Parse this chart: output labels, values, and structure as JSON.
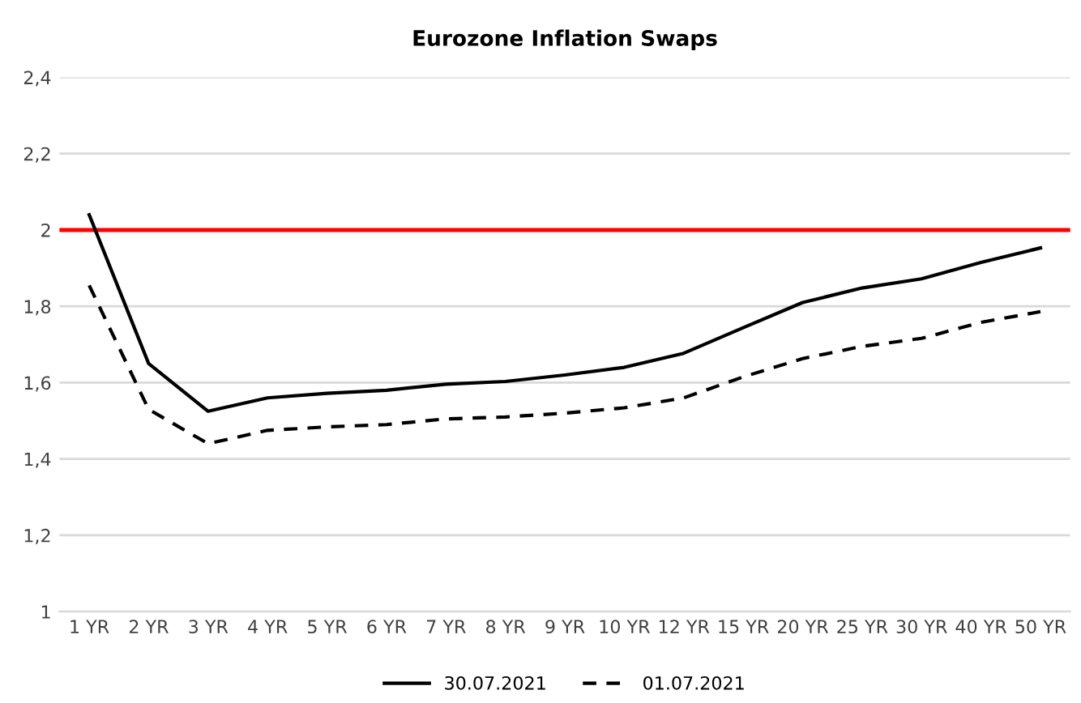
{
  "chart_data": {
    "type": "line",
    "title": "Eurozone Inflation Swaps",
    "categories": [
      "1 YR",
      "2 YR",
      "3 YR",
      "4 YR",
      "5 YR",
      "6 YR",
      "7 YR",
      "8 YR",
      "9 YR",
      "10 YR",
      "12 YR",
      "15 YR",
      "20 YR",
      "25 YR",
      "30 YR",
      "40 YR",
      "50 YR"
    ],
    "series": [
      {
        "name": "30.07.2021",
        "color": "#000000",
        "line_style": "solid",
        "values": [
          2.04,
          1.65,
          1.525,
          1.56,
          1.572,
          1.58,
          1.596,
          1.603,
          1.62,
          1.64,
          1.677,
          1.744,
          1.81,
          1.848,
          1.872,
          1.915,
          1.953
        ]
      },
      {
        "name": "01.07.2021",
        "color": "#000000",
        "line_style": "dashed",
        "values": [
          1.855,
          1.53,
          1.44,
          1.475,
          1.484,
          1.49,
          1.505,
          1.51,
          1.52,
          1.534,
          1.56,
          1.615,
          1.663,
          1.695,
          1.716,
          1.758,
          1.786
        ]
      }
    ],
    "ylim": [
      1,
      2.4
    ],
    "yticks": [
      {
        "value": 1,
        "label": "1"
      },
      {
        "value": 1.2,
        "label": "1,2"
      },
      {
        "value": 1.4,
        "label": "1,4"
      },
      {
        "value": 1.6,
        "label": "1,6"
      },
      {
        "value": 1.8,
        "label": "1,8"
      },
      {
        "value": 2,
        "label": "2"
      },
      {
        "value": 2.2,
        "label": "2,2"
      },
      {
        "value": 2.4,
        "label": "2,4"
      }
    ],
    "ref_lines": [
      {
        "axis": "y",
        "value": 2,
        "color": "#ff0000"
      }
    ],
    "grid": "y",
    "legend": "bottom",
    "marker": "none"
  }
}
